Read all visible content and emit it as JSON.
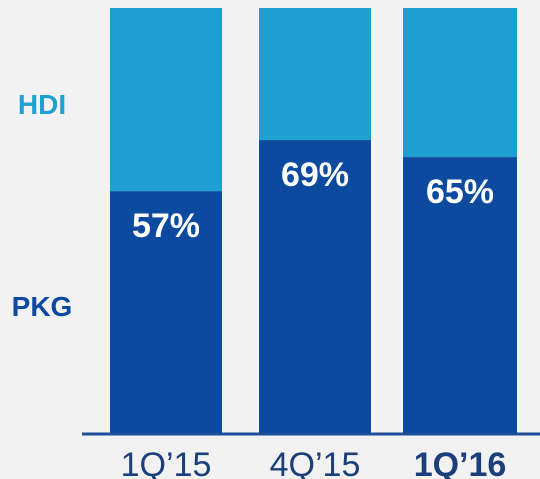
{
  "chart_data": {
    "type": "bar",
    "stacked": true,
    "orientation": "vertical",
    "normalized_to": 100,
    "categories": [
      "1Q’15",
      "4Q’15",
      "1Q’16"
    ],
    "highlight_category": "1Q’16",
    "series": [
      {
        "name": "PKG",
        "values": [
          57,
          69,
          65
        ],
        "labels": [
          "57%",
          "69%",
          "65%"
        ],
        "color": "#0b4a9e"
      },
      {
        "name": "HDI",
        "values": [
          43,
          31,
          35
        ],
        "color": "#1fa0d3"
      }
    ],
    "ylim": [
      0,
      100
    ],
    "legend_placement": "left",
    "grid": false,
    "axis_color": "#1e4f9a"
  }
}
